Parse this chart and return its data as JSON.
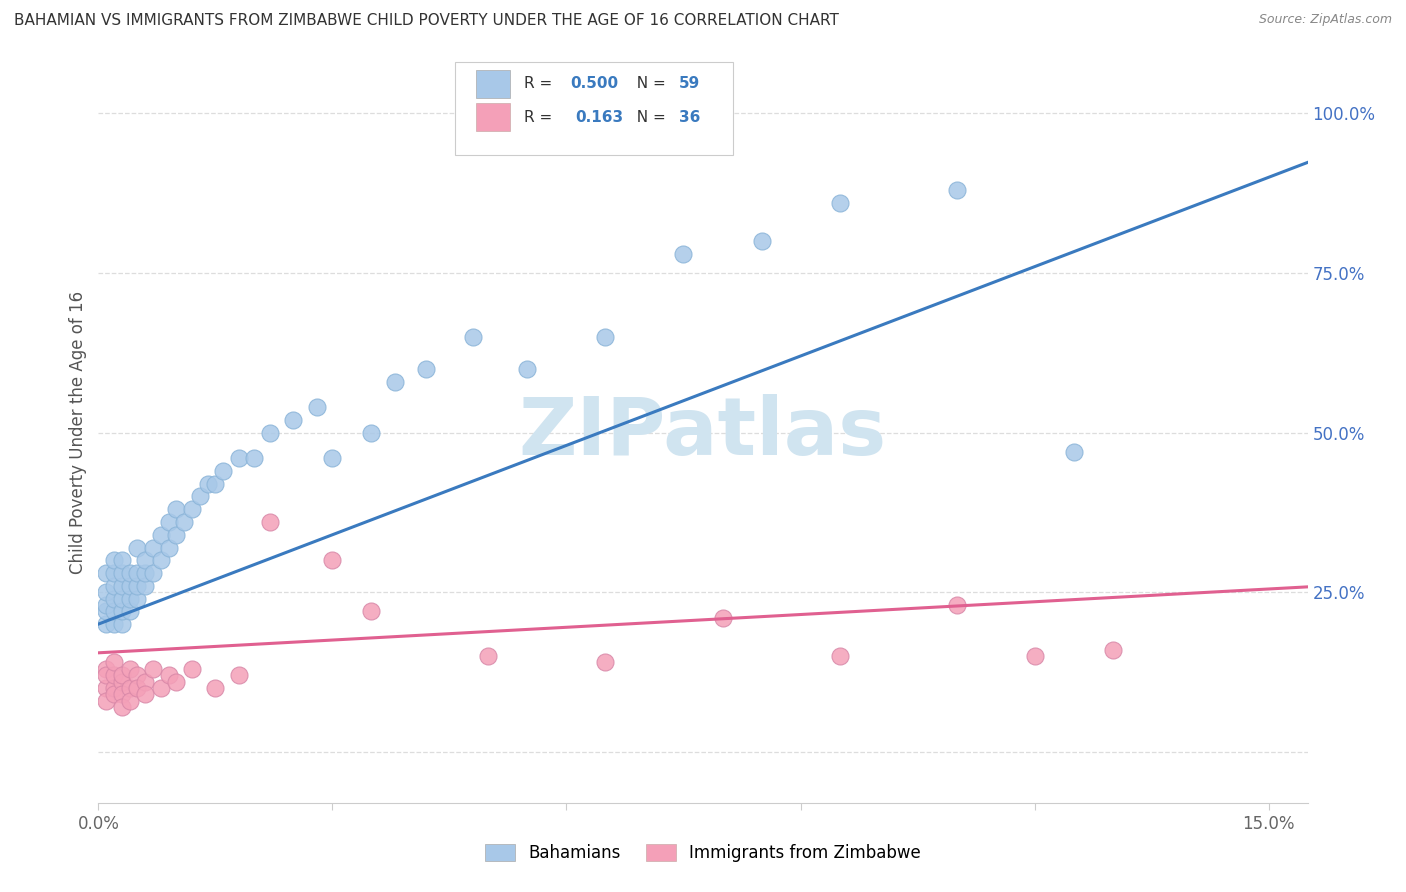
{
  "title": "BAHAMIAN VS IMMIGRANTS FROM ZIMBABWE CHILD POVERTY UNDER THE AGE OF 16 CORRELATION CHART",
  "source": "Source: ZipAtlas.com",
  "ylabel": "Child Poverty Under the Age of 16",
  "xlim": [
    0.0,
    0.155
  ],
  "ylim": [
    -0.08,
    1.08
  ],
  "blue_R": 0.5,
  "blue_N": 59,
  "pink_R": 0.163,
  "pink_N": 36,
  "blue_color": "#a8c8e8",
  "pink_color": "#f4a0b8",
  "blue_line_color": "#3a7abf",
  "pink_line_color": "#e06090",
  "watermark": "ZIPatlas",
  "watermark_color": "#d0e4f0",
  "blue_scatter_x": [
    0.001,
    0.001,
    0.001,
    0.001,
    0.001,
    0.002,
    0.002,
    0.002,
    0.002,
    0.002,
    0.002,
    0.003,
    0.003,
    0.003,
    0.003,
    0.003,
    0.003,
    0.004,
    0.004,
    0.004,
    0.004,
    0.005,
    0.005,
    0.005,
    0.005,
    0.006,
    0.006,
    0.006,
    0.007,
    0.007,
    0.008,
    0.008,
    0.009,
    0.009,
    0.01,
    0.01,
    0.011,
    0.012,
    0.013,
    0.014,
    0.015,
    0.016,
    0.018,
    0.02,
    0.022,
    0.025,
    0.028,
    0.03,
    0.035,
    0.038,
    0.042,
    0.048,
    0.055,
    0.065,
    0.075,
    0.085,
    0.095,
    0.11,
    0.125
  ],
  "blue_scatter_y": [
    0.2,
    0.22,
    0.23,
    0.25,
    0.28,
    0.2,
    0.22,
    0.24,
    0.26,
    0.28,
    0.3,
    0.2,
    0.22,
    0.24,
    0.26,
    0.28,
    0.3,
    0.22,
    0.24,
    0.26,
    0.28,
    0.24,
    0.26,
    0.28,
    0.32,
    0.26,
    0.28,
    0.3,
    0.28,
    0.32,
    0.3,
    0.34,
    0.32,
    0.36,
    0.34,
    0.38,
    0.36,
    0.38,
    0.4,
    0.42,
    0.42,
    0.44,
    0.46,
    0.46,
    0.5,
    0.52,
    0.54,
    0.46,
    0.5,
    0.58,
    0.6,
    0.65,
    0.6,
    0.65,
    0.78,
    0.8,
    0.86,
    0.88,
    0.47
  ],
  "pink_scatter_x": [
    0.001,
    0.001,
    0.001,
    0.001,
    0.002,
    0.002,
    0.002,
    0.002,
    0.003,
    0.003,
    0.003,
    0.003,
    0.004,
    0.004,
    0.004,
    0.005,
    0.005,
    0.006,
    0.006,
    0.007,
    0.008,
    0.009,
    0.01,
    0.012,
    0.015,
    0.018,
    0.022,
    0.03,
    0.035,
    0.05,
    0.065,
    0.08,
    0.095,
    0.11,
    0.12,
    0.13
  ],
  "pink_scatter_y": [
    0.13,
    0.1,
    0.12,
    0.08,
    0.1,
    0.12,
    0.14,
    0.09,
    0.11,
    0.09,
    0.07,
    0.12,
    0.13,
    0.1,
    0.08,
    0.12,
    0.1,
    0.11,
    0.09,
    0.13,
    0.1,
    0.12,
    0.11,
    0.13,
    0.1,
    0.12,
    0.36,
    0.3,
    0.22,
    0.15,
    0.14,
    0.21,
    0.15,
    0.23,
    0.15,
    0.16
  ],
  "legend_labels": [
    "Bahamians",
    "Immigrants from Zimbabwe"
  ],
  "background_color": "#ffffff",
  "grid_color": "#dddddd",
  "ytick_right_vals": [
    0.0,
    0.25,
    0.5,
    0.75,
    1.0
  ],
  "ytick_right_labels": [
    "",
    "25.0%",
    "50.0%",
    "75.0%",
    "100.0%"
  ],
  "xtick_vals": [
    0.0,
    0.03,
    0.06,
    0.09,
    0.12,
    0.15
  ],
  "xtick_labels": [
    "0.0%",
    "",
    "",
    "",
    "",
    "15.0%"
  ]
}
